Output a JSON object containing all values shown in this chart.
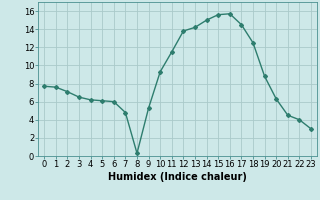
{
  "x": [
    0,
    1,
    2,
    3,
    4,
    5,
    6,
    7,
    8,
    9,
    10,
    11,
    12,
    13,
    14,
    15,
    16,
    17,
    18,
    19,
    20,
    21,
    22,
    23
  ],
  "y": [
    7.7,
    7.6,
    7.1,
    6.5,
    6.2,
    6.1,
    6.0,
    4.8,
    0.3,
    5.3,
    9.3,
    11.5,
    13.8,
    14.2,
    15.0,
    15.6,
    15.7,
    14.5,
    12.5,
    8.8,
    6.3,
    4.5,
    4.0,
    3.0
  ],
  "line_color": "#2e7d6e",
  "marker": "D",
  "marker_size": 2,
  "bg_color": "#cde8e8",
  "grid_color": "#aacaca",
  "xlabel": "Humidex (Indice chaleur)",
  "xlim": [
    -0.5,
    23.5
  ],
  "ylim": [
    0,
    17
  ],
  "yticks": [
    0,
    2,
    4,
    6,
    8,
    10,
    12,
    14,
    16
  ],
  "xticks": [
    0,
    1,
    2,
    3,
    4,
    5,
    6,
    7,
    8,
    9,
    10,
    11,
    12,
    13,
    14,
    15,
    16,
    17,
    18,
    19,
    20,
    21,
    22,
    23
  ],
  "xlabel_fontsize": 7,
  "tick_fontsize": 6,
  "line_width": 1.0
}
